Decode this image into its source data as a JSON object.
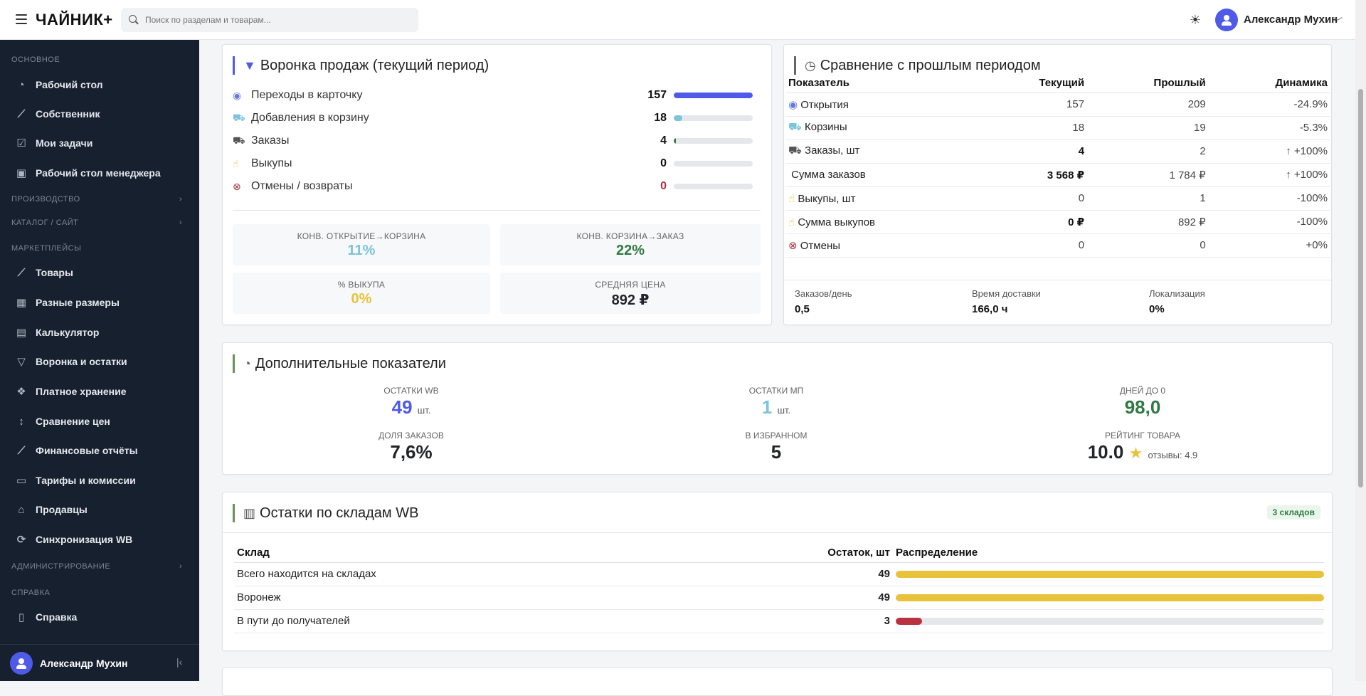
{
  "app": {
    "logo": "ЧАЙНИК+",
    "search_placeholder": "Поиск по разделам и товарам...",
    "user_name": "Александр Мухин"
  },
  "sidebar": {
    "sections": {
      "main": "ОСНОВНОЕ",
      "production": "ПРОИЗВОДСТВО",
      "catalog": "КАТАЛОГ / САЙТ",
      "marketplaces": "МАРКЕТПЛЕЙСЫ",
      "admin": "АДМИНИСТРИРОВАНИЕ",
      "help": "СПРАВКА"
    },
    "items": {
      "desktop": "Рабочий стол",
      "owner": "Собственник",
      "tasks": "Мои задачи",
      "manager": "Рабочий стол менеджера",
      "goods": "Товары",
      "sizes": "Разные размеры",
      "calc": "Калькулятор",
      "funnel": "Воронка и остатки",
      "storage": "Платное хранение",
      "prices": "Сравнение цен",
      "finance": "Финансовые отчёты",
      "tariffs": "Тарифы и комиссии",
      "sellers": "Продавцы",
      "sync": "Синхронизация WB",
      "help": "Справка"
    },
    "user_name": "Александр Мухин"
  },
  "funnel": {
    "title": "Воронка продаж (текущий период)",
    "rows": [
      {
        "label": "Переходы в карточку",
        "value": "157",
        "fill": 1.0,
        "color": "#4f5be8"
      },
      {
        "label": "Добавления в корзину",
        "value": "18",
        "fill": 0.11,
        "color": "#7cc3dc"
      },
      {
        "label": "Заказы",
        "value": "4",
        "fill": 0.025,
        "color": "#2f7a43"
      },
      {
        "label": "Выкупы",
        "value": "0",
        "fill": 0,
        "color": "#e8c23a"
      },
      {
        "label": "Отмены / возвраты",
        "value": "0",
        "fill": 0,
        "color": "#a8323f"
      }
    ],
    "kpis": {
      "conv_open_cart": {
        "label": "КОНВ. ОТКРЫТИЕ→КОРЗИНА",
        "value": "11%",
        "color": "#7cc3dc"
      },
      "conv_cart_order": {
        "label": "КОНВ. КОРЗИНА→ЗАКАЗ",
        "value": "22%",
        "color": "#2f7a43"
      },
      "buyout": {
        "label": "% ВЫКУПА",
        "value": "0%",
        "color": "#e8c23a"
      },
      "avg_price": {
        "label": "СРЕДНЯЯ ЦЕНА",
        "value": "892 ₽",
        "color": "#111111"
      }
    }
  },
  "comparison": {
    "title": "Сравнение с прошлым периодом",
    "headers": {
      "metric": "Показатель",
      "current": "Текущий",
      "previous": "Прошлый",
      "dynamics": "Динамика"
    },
    "rows": [
      {
        "label": "Открытия",
        "current": "157",
        "previous": "209",
        "dynamics": "-24.9%"
      },
      {
        "label": "Корзины",
        "current": "18",
        "previous": "19",
        "dynamics": "-5.3%"
      },
      {
        "label": "Заказы, шт",
        "current": "4",
        "previous": "2",
        "dynamics": "+100%"
      },
      {
        "label": "Сумма заказов",
        "current": "3 568 ₽",
        "previous": "1 784 ₽",
        "dynamics": "+100%"
      },
      {
        "label": "Выкупы, шт",
        "current": "0",
        "previous": "1",
        "dynamics": "-100%"
      },
      {
        "label": "Сумма выкупов",
        "current": "0 ₽",
        "previous": "892 ₽",
        "dynamics": "-100%"
      },
      {
        "label": "Отмены",
        "current": "0",
        "previous": "0",
        "dynamics": "+0%"
      }
    ],
    "summary": {
      "orders_per_day": {
        "label": "Заказов/день",
        "value": "0,5"
      },
      "delivery_time": {
        "label": "Время доставки",
        "value": "166,0 ч"
      },
      "localization": {
        "label": "Локализация",
        "value": "0%"
      }
    }
  },
  "extra": {
    "title": "Дополнительные показатели",
    "wb_stock": {
      "label": "ОСТАТКИ WB",
      "value": "49",
      "unit": "шт.",
      "color": "#4f5be8"
    },
    "mp_stock": {
      "label": "ОСТАТКИ МП",
      "value": "1",
      "unit": "шт.",
      "color": "#7cc3dc"
    },
    "days_left": {
      "label": "ДНЕЙ ДО 0",
      "value": "98,0",
      "color": "#2f7a43"
    },
    "order_share": {
      "label": "ДОЛЯ ЗАКАЗОВ",
      "value": "7,6%"
    },
    "favorites": {
      "label": "В ИЗБРАННОМ",
      "value": "5"
    },
    "rating": {
      "label": "РЕЙТИНГ ТОВАРА",
      "value": "10.0",
      "reviews": "отзывы: 4.9"
    }
  },
  "warehouses": {
    "title": "Остатки по складам WB",
    "badge": "3 складов",
    "headers": {
      "warehouse": "Склад",
      "stock": "Остаток, шт",
      "distribution": "Распределение"
    },
    "rows": [
      {
        "name": "Всего находится на складах",
        "stock": "49",
        "fill": 1.0,
        "color": "#e8c23a"
      },
      {
        "name": "Воронеж",
        "stock": "49",
        "fill": 1.0,
        "color": "#e8c23a"
      },
      {
        "name": "В пути до получателей",
        "stock": "3",
        "fill": 0.061,
        "color": "#b8323f"
      }
    ]
  }
}
